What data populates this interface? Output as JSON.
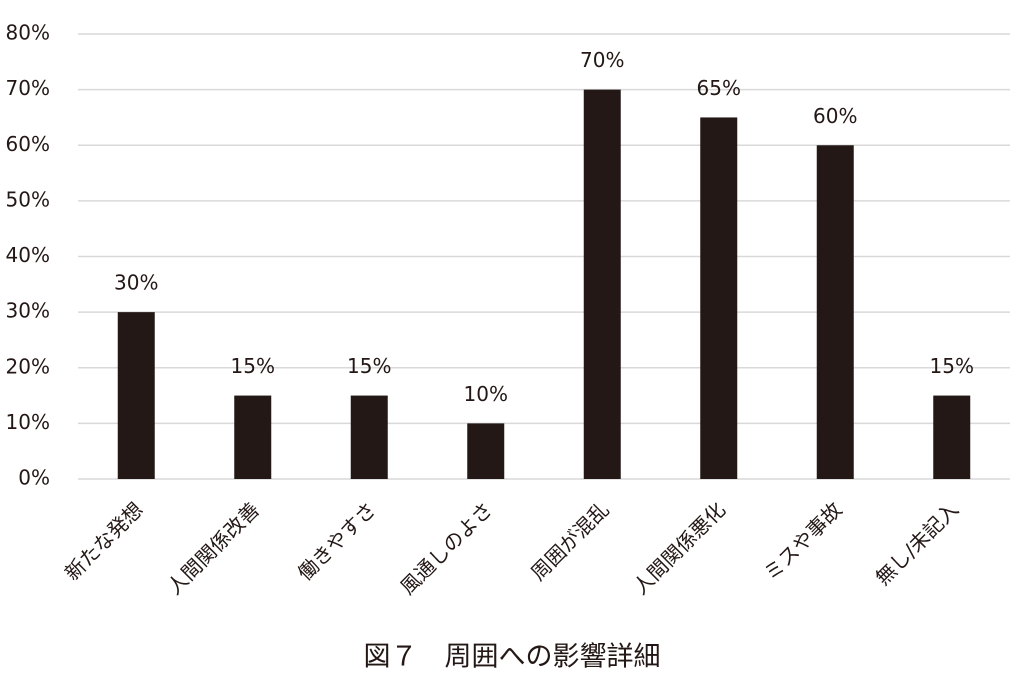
{
  "chart_data": {
    "type": "bar",
    "title": "図７　周囲への影響詳細",
    "categories": [
      "新たな発想",
      "人間関係改善",
      "働きやすさ",
      "風通しのよさ",
      "周囲が混乱",
      "人間関係悪化",
      "ミスや事故",
      "無し/未記入"
    ],
    "values": [
      30,
      15,
      15,
      10,
      70,
      65,
      60,
      15
    ],
    "value_labels": [
      "30%",
      "15%",
      "15%",
      "10%",
      "70%",
      "65%",
      "60%",
      "15%"
    ],
    "color": "#231815",
    "ylim": [
      0,
      80
    ],
    "yticks": [
      {
        "value": 0,
        "label": "0%"
      },
      {
        "value": 10,
        "label": "10%"
      },
      {
        "value": 20,
        "label": "20%"
      },
      {
        "value": 30,
        "label": "30%"
      },
      {
        "value": 40,
        "label": "40%"
      },
      {
        "value": 50,
        "label": "50%"
      },
      {
        "value": 60,
        "label": "60%"
      },
      {
        "value": 70,
        "label": "70%"
      },
      {
        "value": 80,
        "label": "80%"
      }
    ],
    "grid": true
  }
}
